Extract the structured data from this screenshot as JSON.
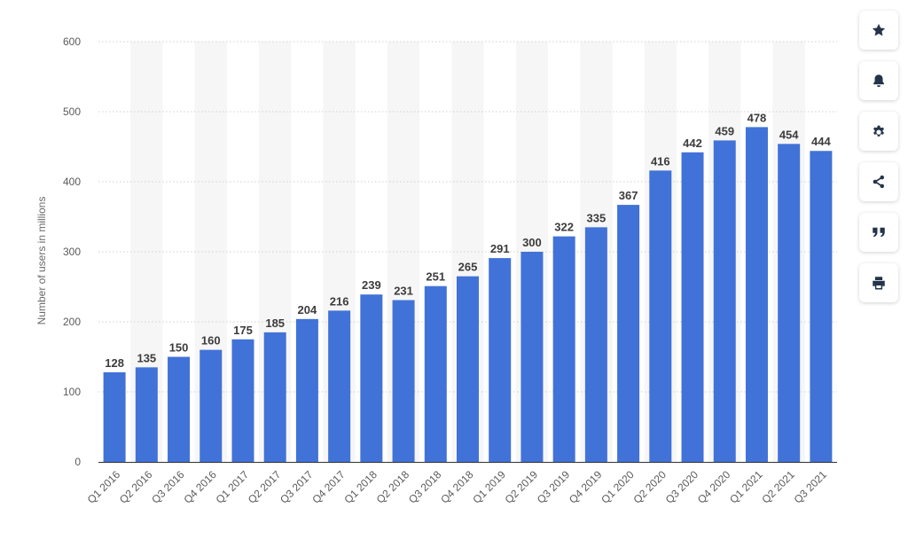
{
  "chart_data": {
    "type": "bar",
    "title": "",
    "xlabel": "",
    "ylabel": "Number of users in millions",
    "ylim": [
      0,
      600
    ],
    "yticks": [
      0,
      100,
      200,
      300,
      400,
      500,
      600
    ],
    "grid": true,
    "legend": "none",
    "categories": [
      "Q1 2016",
      "Q2 2016",
      "Q3 2016",
      "Q4 2016",
      "Q1 2017",
      "Q2 2017",
      "Q3 2017",
      "Q4 2017",
      "Q1 2018",
      "Q2 2018",
      "Q3 2018",
      "Q4 2018",
      "Q1 2019",
      "Q2 2019",
      "Q3 2019",
      "Q4 2019",
      "Q1 2020",
      "Q2 2020",
      "Q3 2020",
      "Q4 2020",
      "Q1 2021",
      "Q2 2021",
      "Q3 2021"
    ],
    "values": [
      128,
      135,
      150,
      160,
      175,
      185,
      204,
      216,
      239,
      231,
      251,
      265,
      291,
      300,
      322,
      335,
      367,
      416,
      442,
      459,
      478,
      454,
      444
    ],
    "colors": {
      "bar": "#4172d8",
      "band": "#f6f6f6",
      "grid": "#d0d0d0",
      "label": "#3c3c3c",
      "axis_text": "#5a5a5a",
      "axis": "#333333"
    }
  },
  "sidebar": {
    "icon_color": "#23344a",
    "items": [
      {
        "icon": "star-icon"
      },
      {
        "icon": "bell-icon"
      },
      {
        "icon": "gear-icon"
      },
      {
        "icon": "share-icon"
      },
      {
        "icon": "quote-icon"
      },
      {
        "icon": "print-icon"
      }
    ]
  }
}
